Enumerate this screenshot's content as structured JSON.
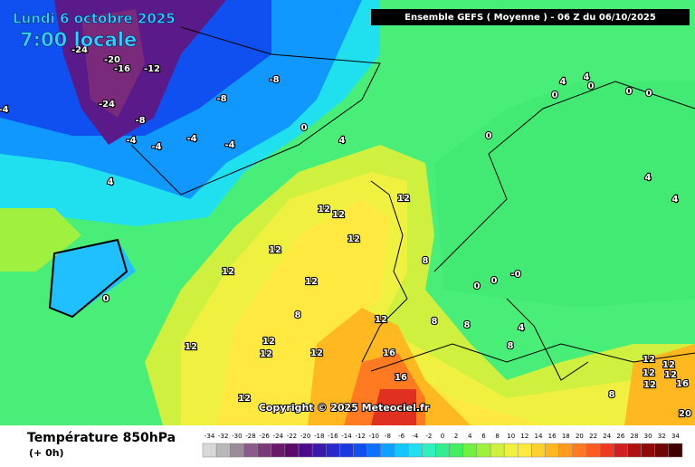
{
  "header": {
    "date": "Lundi 6 octobre 2025",
    "time": "7:00 locale",
    "run": "Ensemble GEFS  ( Moyenne )  -  06 Z du 06/10/2025"
  },
  "map": {
    "copyright": "Copyright © 2025 Meteociel.fr",
    "contour_labels": [
      "-24",
      "-20",
      "-16",
      "-12",
      "-8",
      "-8",
      "-24",
      "-8",
      "-4",
      "-4",
      "-4",
      "-4",
      "0",
      "4",
      "4",
      "0",
      "-4",
      "12",
      "12",
      "12",
      "12",
      "12",
      "12",
      "12",
      "8",
      "12",
      "8",
      "8",
      "8",
      "12",
      "12",
      "12",
      "12",
      "16",
      "16",
      "12",
      "4",
      "4",
      "0",
      "0",
      "0",
      "0",
      "0",
      "4",
      "4",
      "0",
      "0",
      "-0",
      "4",
      "8",
      "12",
      "12",
      "12",
      "12",
      "16",
      "12",
      "8",
      "20"
    ]
  },
  "footer": {
    "title": "Température 850hPa",
    "lead": "(+ 0h)"
  },
  "legend": {
    "ticks": [
      -34,
      -32,
      -30,
      -28,
      -26,
      -24,
      -22,
      -20,
      -18,
      -16,
      -14,
      -12,
      -10,
      -8,
      -6,
      -4,
      -2,
      0,
      2,
      4,
      6,
      8,
      10,
      12,
      14,
      16,
      18,
      20,
      22,
      24,
      26,
      28,
      30,
      32,
      34
    ],
    "colors": [
      "#d8d8d8",
      "#b8b8b8",
      "#9a8a9a",
      "#8a5a8a",
      "#7a3a7a",
      "#6a1a6a",
      "#5a0a6a",
      "#4a0a8a",
      "#3a1aaa",
      "#2a2acc",
      "#1a3ae0",
      "#1050f0",
      "#1070ff",
      "#10a0ff",
      "#10c8ff",
      "#20e0f0",
      "#30f0c0",
      "#30ee90",
      "#40ee60",
      "#70f040",
      "#a0f040",
      "#d0f040",
      "#f0f040",
      "#ffe840",
      "#ffd030",
      "#ffb820",
      "#ff9a20",
      "#ff7a20",
      "#ff5a20",
      "#f03a20",
      "#d02020",
      "#b01010",
      "#900a0a",
      "#700505",
      "#400000"
    ]
  }
}
